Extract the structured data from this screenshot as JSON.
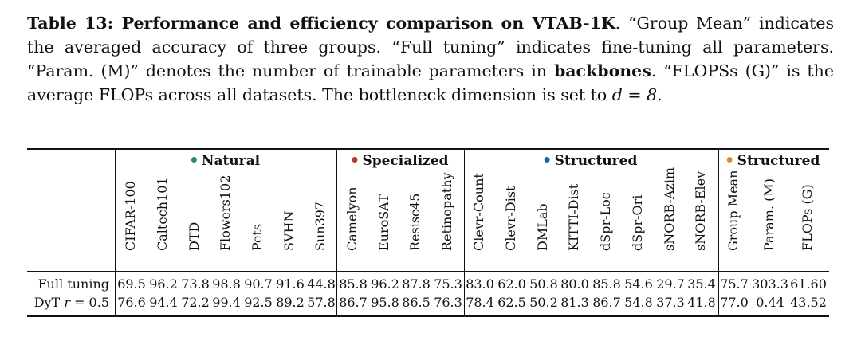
{
  "caption": {
    "label": "Table 13: Performance and efficiency comparison on VTAB-1K",
    "text_1": ". “Group Mean” indicates the averaged accuracy of three groups. “Full tuning” indicates fine-tuning all parameters. “Param. (M)” denotes the number of trainable parameters in ",
    "bold_2": "backbones",
    "text_3": ". “FLOPSs (G)” is the average FLOPs across all datasets. The bottleneck dimension is set to ",
    "math": "d = 8",
    "text_4": "."
  },
  "groups": [
    {
      "label": "Natural",
      "color": "#2e8b57"
    },
    {
      "label": "Specialized",
      "color": "#b03a2e"
    },
    {
      "label": "Structured",
      "color": "#1f5fa8"
    },
    {
      "label": "Structured",
      "color": "#e08a2c"
    }
  ],
  "columns": [
    "CIFAR-100",
    "Caltech101",
    "DTD",
    "Flowers102",
    "Pets",
    "SVHN",
    "Sun397",
    "Camelyon",
    "EuroSAT",
    "Resisc45",
    "Retinopathy",
    "Clevr-Count",
    "Clevr-Dist",
    "DMLab",
    "KITTI-Dist",
    "dSpr-Loc",
    "dSpr-Ori",
    "sNORB-Azim",
    "sNORB-Elev",
    "Group Mean",
    "Param. (M)",
    "FLOPs (G)"
  ],
  "rows": [
    {
      "label": "Full tuning",
      "values": [
        "69.5",
        "96.2",
        "73.8",
        "98.8",
        "90.7",
        "91.6",
        "44.8",
        "85.8",
        "96.2",
        "87.8",
        "75.3",
        "83.0",
        "62.0",
        "50.8",
        "80.0",
        "85.8",
        "54.6",
        "29.7",
        "35.4",
        "75.7",
        "303.3",
        "61.60"
      ]
    },
    {
      "label": "DyT r = 0.5",
      "values": [
        "76.6",
        "94.4",
        "72.2",
        "99.4",
        "92.5",
        "89.2",
        "57.8",
        "86.7",
        "95.8",
        "86.5",
        "76.3",
        "78.4",
        "62.5",
        "50.2",
        "81.3",
        "86.7",
        "54.8",
        "37.3",
        "41.8",
        "77.0",
        "0.44",
        "43.52"
      ]
    }
  ]
}
